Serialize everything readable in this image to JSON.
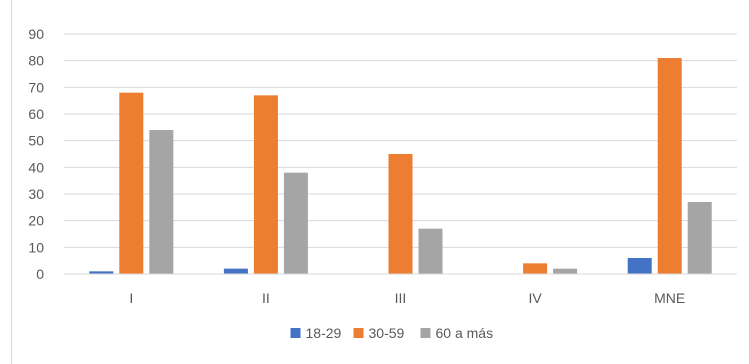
{
  "chart_data": {
    "type": "bar",
    "title": "",
    "xlabel": "",
    "ylabel": "",
    "categories": [
      "I",
      "II",
      "III",
      "IV",
      "MNE"
    ],
    "ylim": [
      0,
      90
    ],
    "yticks": [
      "0",
      "10",
      "20",
      "30",
      "40",
      "50",
      "60",
      "70",
      "80",
      "90"
    ],
    "grid": true,
    "legend_position": "bottom",
    "series": [
      {
        "name": "18-29",
        "color": "#4472c4",
        "values": [
          1,
          2,
          0,
          0,
          6
        ]
      },
      {
        "name": "30-59",
        "color": "#ed7d31",
        "values": [
          68,
          67,
          45,
          4,
          81
        ]
      },
      {
        "name": "60 a más",
        "color": "#a5a5a5",
        "values": [
          54,
          38,
          17,
          2,
          27
        ]
      }
    ]
  }
}
